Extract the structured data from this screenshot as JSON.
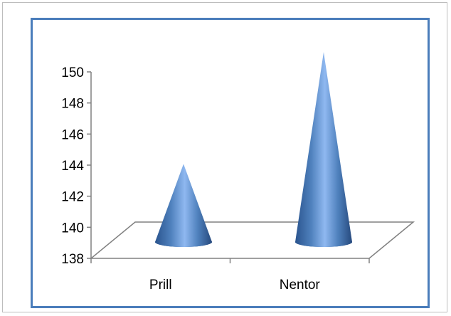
{
  "chart_data": {
    "type": "bar",
    "bar_shape": "cone",
    "three_d": true,
    "title": "",
    "xlabel": "",
    "ylabel": "",
    "categories": [
      "Prill",
      "Nentor"
    ],
    "values": [
      143,
      150.2
    ],
    "ylim": [
      138,
      150
    ],
    "yticks": [
      138,
      140,
      142,
      144,
      146,
      148,
      150
    ],
    "grid": false,
    "legend": "none",
    "colors": {
      "bar": "#4f81bd",
      "frame": "#4a7dbb",
      "axis": "#808080"
    }
  }
}
